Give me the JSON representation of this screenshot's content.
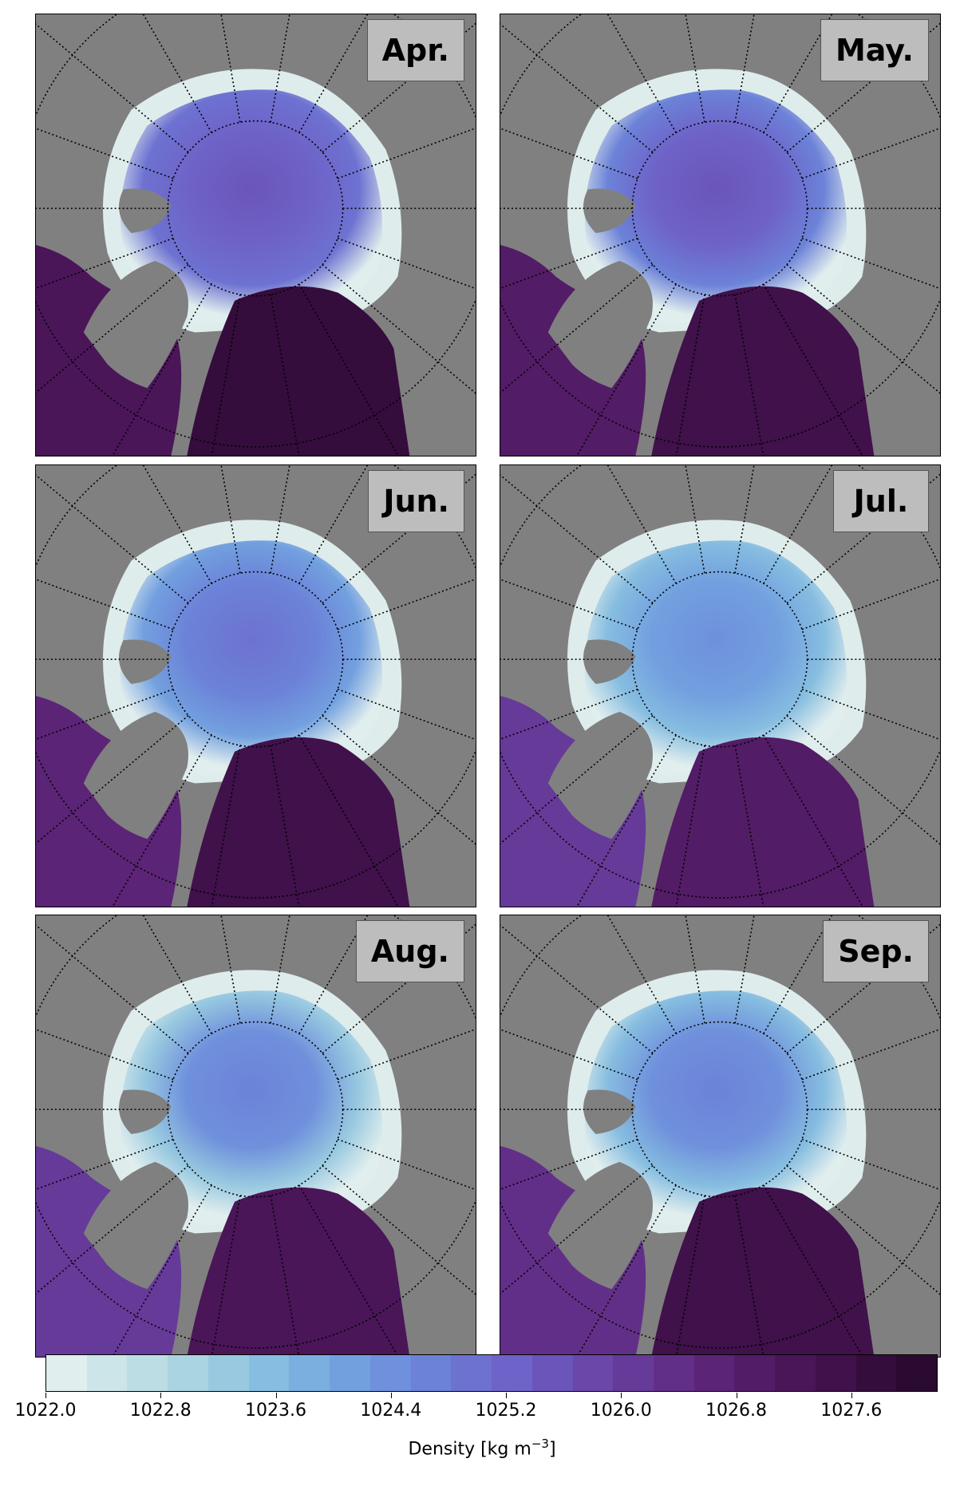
{
  "panels": [
    {
      "label": "Apr.",
      "atlantic_density": 1027.7,
      "pacific_density": 1027.1,
      "central_density": 1025.6,
      "shelf_density": 1024.9
    },
    {
      "label": "May.",
      "atlantic_density": 1027.6,
      "pacific_density": 1027.0,
      "central_density": 1025.5,
      "shelf_density": 1024.6
    },
    {
      "label": "Jun.",
      "atlantic_density": 1027.4,
      "pacific_density": 1026.6,
      "central_density": 1025.0,
      "shelf_density": 1024.2
    },
    {
      "label": "Jul.",
      "atlantic_density": 1027.0,
      "pacific_density": 1026.0,
      "central_density": 1024.5,
      "shelf_density": 1023.6
    },
    {
      "label": "Aug.",
      "atlantic_density": 1027.3,
      "pacific_density": 1026.2,
      "central_density": 1024.6,
      "shelf_density": 1023.3
    },
    {
      "label": "Sep.",
      "atlantic_density": 1027.4,
      "pacific_density": 1026.4,
      "central_density": 1024.8,
      "shelf_density": 1023.6
    }
  ],
  "colorbar": {
    "min": 1022.0,
    "max": 1028.2,
    "ticks": [
      "1022.0",
      "1022.8",
      "1023.6",
      "1024.4",
      "1025.2",
      "1026.0",
      "1026.8",
      "1027.6"
    ],
    "label": "Density [kg m",
    "label_sup": "−3",
    "label_end": "]",
    "colors": [
      "#e1eeee",
      "#cce5e8",
      "#bcdde4",
      "#aad4e2",
      "#98c9e0",
      "#86bde0",
      "#7aafe0",
      "#72a0df",
      "#6f90dc",
      "#6c82d8",
      "#6d72d1",
      "#6e63c8",
      "#6b55ba",
      "#6a47a9",
      "#663a98",
      "#622f88",
      "#5b2476",
      "#531c66",
      "#4a1658",
      "#40114b",
      "#340d3c",
      "#2a0a30"
    ]
  },
  "land_color": "#808080",
  "ice_color": "#dfecec"
}
